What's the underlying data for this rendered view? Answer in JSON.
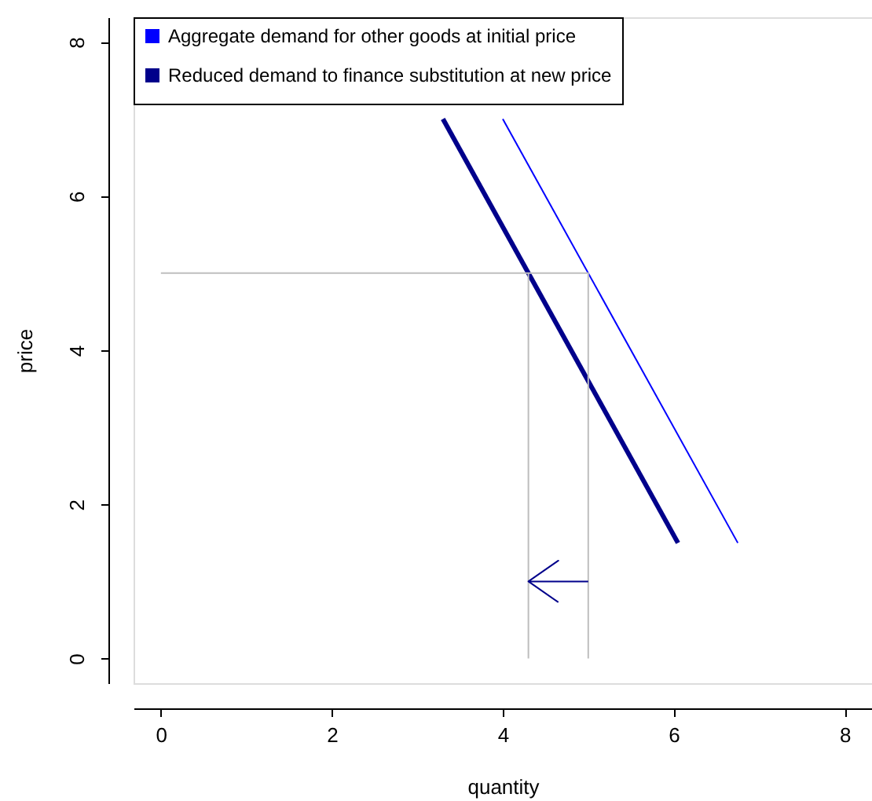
{
  "chart_data": {
    "type": "line",
    "xlabel": "quantity",
    "ylabel": "price",
    "xlim": [
      -0.32,
      8.32
    ],
    "ylim": [
      -0.32,
      8.32
    ],
    "xticks": [
      0,
      2,
      4,
      6,
      8
    ],
    "yticks": [
      0,
      2,
      4,
      6,
      8
    ],
    "grid": false,
    "legend": "top left",
    "marker": "none",
    "line_style": "solid",
    "series": [
      {
        "name": "Aggregate demand for other goods at initial price",
        "color": "#0000ff",
        "x": [
          4.0,
          6.75
        ],
        "values": [
          7,
          1.5
        ]
      },
      {
        "name": "Reduced demand to finance substitution at new price",
        "color": "#00008b",
        "x": [
          3.3,
          6.05
        ],
        "values": [
          7,
          1.5
        ]
      },
      {
        "color": "#bebebe",
        "x": [
          0,
          5,
          5
        ],
        "values": [
          5,
          5,
          0
        ]
      },
      {
        "color": "#bebebe",
        "x": [
          4.3,
          4.3
        ],
        "values": [
          5,
          0
        ]
      },
      {
        "color": "#00008b",
        "x": [
          5,
          4.3,
          4.65,
          4.3,
          4.65
        ],
        "values": [
          1,
          1,
          1.27,
          1,
          0.73
        ]
      }
    ]
  }
}
